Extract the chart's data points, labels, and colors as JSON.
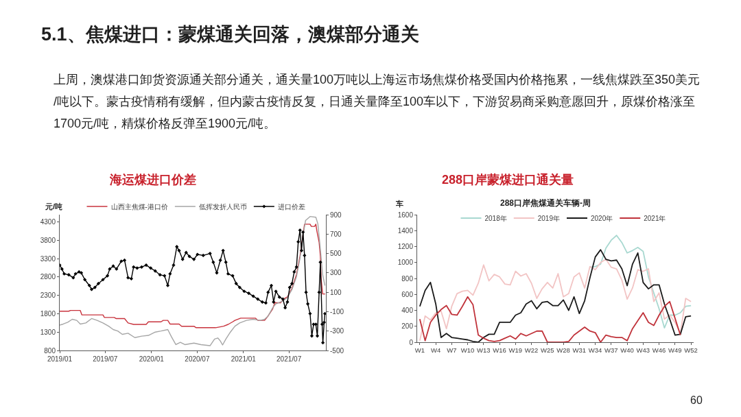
{
  "chart_data": [
    {
      "type": "line",
      "title": "海运煤进口价差",
      "ylabel": "元/吨",
      "xlim": [
        "2019-01-01",
        "2021-11-25"
      ],
      "xticks": [
        {
          "value": "2019-01",
          "label": "2019/01"
        },
        {
          "value": "2019-07",
          "label": "2019/07"
        },
        {
          "value": "2020-01",
          "label": "2020/01"
        },
        {
          "value": "2020-07",
          "label": "2020/07"
        },
        {
          "value": "2021-01",
          "label": "2021/01"
        },
        {
          "value": "2021-07",
          "label": "2021/07"
        }
      ],
      "ylim": [
        800,
        4500
      ],
      "yticks": [
        800,
        1300,
        1800,
        2300,
        2800,
        3300,
        3800,
        4300
      ],
      "y2lim": [
        -500,
        900
      ],
      "y2ticks": [
        -500,
        -300,
        -100,
        100,
        300,
        500,
        700,
        900
      ],
      "legend": "top",
      "annotations": [
        "5.1、焦煤进口：蒙煤通关回落，澳煤部分通关",
        "上周，澳煤港口卸货资源通关部分通关，通关量100万吨以上海运市场焦煤价格受国内价格拖累，一线焦煤跌至350美元/吨以下。蒙古疫情稍有缓解，但内蒙古疫情反复，日通关量降至100车以下，下游贸易商采购意愿回升，原煤价格涨至1700元/吨，精煤价格反弹至1900元/吨。"
      ],
      "series": [
        {
          "name": "山西主焦煤-港口价",
          "color": "#c8323c",
          "x": [
            "2019-01-01",
            "2019-02-06",
            "2019-02-13",
            "2019-03-24",
            "2019-03-30",
            "2019-06-22",
            "2019-06-28",
            "2019-08-06",
            "2019-08-13",
            "2019-09-16",
            "2019-09-30",
            "2019-10-22",
            "2019-12-11",
            "2019-12-20",
            "2020-02-08",
            "2020-02-17",
            "2020-03-06",
            "2020-03-15",
            "2020-04-20",
            "2020-04-30",
            "2020-06-18",
            "2020-06-27",
            "2020-09-12",
            "2020-10-14",
            "2020-11-01",
            "2020-11-19",
            "2020-11-28",
            "2020-12-21",
            "2021-02-18",
            "2021-02-27",
            "2021-03-26",
            "2021-04-09",
            "2021-04-27",
            "2021-05-06",
            "2021-05-29",
            "2021-06-11",
            "2021-06-25",
            "2021-07-13",
            "2021-07-31",
            "2021-08-14",
            "2021-08-23",
            "2021-09-01",
            "2021-09-23",
            "2021-09-28",
            "2021-10-11",
            "2021-10-16",
            "2021-10-20",
            "2021-10-29",
            "2021-11-03",
            "2021-11-06",
            "2021-11-12",
            "2021-11-22"
          ],
          "values": [
            1870,
            1870,
            1890,
            1890,
            1770,
            1770,
            1700,
            1700,
            1670,
            1670,
            1550,
            1510,
            1510,
            1580,
            1580,
            1620,
            1620,
            1520,
            1520,
            1460,
            1460,
            1420,
            1420,
            1460,
            1510,
            1580,
            1620,
            1680,
            1680,
            1620,
            1620,
            1740,
            1930,
            2100,
            2100,
            2210,
            2260,
            2490,
            2870,
            3370,
            3810,
            4240,
            4240,
            4180,
            4180,
            4240,
            4060,
            3750,
            3370,
            2750,
            2340,
            2340
          ]
        },
        {
          "name": "低挥发折人民币",
          "color": "#a6a6a6",
          "x": [
            "2019-01-01",
            "2019-01-15",
            "2019-02-02",
            "2019-02-20",
            "2019-03-10",
            "2019-03-24",
            "2019-04-15",
            "2019-05-08",
            "2019-05-30",
            "2019-06-22",
            "2019-07-15",
            "2019-08-02",
            "2019-08-20",
            "2019-09-07",
            "2019-09-30",
            "2019-10-27",
            "2019-11-23",
            "2019-12-20",
            "2020-01-16",
            "2020-02-08",
            "2020-03-06",
            "2020-03-20",
            "2020-04-07",
            "2020-04-25",
            "2020-05-13",
            "2020-06-18",
            "2020-07-16",
            "2020-08-21",
            "2020-09-08",
            "2020-09-21",
            "2020-10-01",
            "2020-10-10",
            "2020-10-23",
            "2020-11-10",
            "2020-11-28",
            "2020-12-17",
            "2021-01-13",
            "2021-02-09",
            "2021-03-08",
            "2021-03-26",
            "2021-04-09",
            "2021-04-27",
            "2021-05-10",
            "2021-06-07",
            "2021-06-25",
            "2021-07-13",
            "2021-07-31",
            "2021-08-14",
            "2021-08-28",
            "2021-09-05",
            "2021-09-23",
            "2021-10-16",
            "2021-10-24",
            "2021-11-03",
            "2021-11-12",
            "2021-11-21"
          ],
          "values": [
            1490,
            1520,
            1570,
            1650,
            1620,
            1520,
            1550,
            1670,
            1620,
            1550,
            1460,
            1370,
            1330,
            1240,
            1270,
            1150,
            1190,
            1210,
            1300,
            1330,
            1370,
            1180,
            960,
            1020,
            960,
            1000,
            960,
            930,
            1110,
            1140,
            1060,
            950,
            1110,
            1300,
            1460,
            1550,
            1620,
            1650,
            1620,
            1650,
            1740,
            1960,
            2070,
            2150,
            2240,
            2460,
            2810,
            3310,
            4000,
            4340,
            4450,
            4430,
            4250,
            3560,
            2870,
            2570
          ]
        },
        {
          "name": "进口价差",
          "color": "#000000",
          "axis": "y2",
          "marker": "diamond",
          "x": [
            "2019-01-01",
            "2019-01-10",
            "2019-01-19",
            "2019-02-06",
            "2019-02-24",
            "2019-03-05",
            "2019-03-19",
            "2019-03-28",
            "2019-04-11",
            "2019-04-29",
            "2019-05-08",
            "2019-05-21",
            "2019-06-04",
            "2019-06-22",
            "2019-07-10",
            "2019-07-19",
            "2019-08-02",
            "2019-08-15",
            "2019-09-03",
            "2019-09-16",
            "2019-09-30",
            "2019-10-13",
            "2019-10-22",
            "2019-11-05",
            "2019-11-23",
            "2019-12-11",
            "2019-12-29",
            "2020-01-16",
            "2020-02-04",
            "2020-02-22",
            "2020-03-06",
            "2020-03-15",
            "2020-03-29",
            "2020-04-11",
            "2020-04-20",
            "2020-05-04",
            "2020-05-18",
            "2020-05-31",
            "2020-06-18",
            "2020-07-02",
            "2020-07-25",
            "2020-08-21",
            "2020-09-03",
            "2020-09-17",
            "2020-10-01",
            "2020-10-12",
            "2020-10-23",
            "2020-11-01",
            "2020-11-19",
            "2020-12-03",
            "2020-12-17",
            "2021-01-04",
            "2021-01-22",
            "2021-02-09",
            "2021-02-27",
            "2021-03-17",
            "2021-03-31",
            "2021-04-09",
            "2021-04-22",
            "2021-05-01",
            "2021-05-10",
            "2021-05-24",
            "2021-06-07",
            "2021-06-16",
            "2021-06-25",
            "2021-07-04",
            "2021-07-13",
            "2021-07-22",
            "2021-07-31",
            "2021-08-07",
            "2021-08-14",
            "2021-08-20",
            "2021-08-26",
            "2021-09-01",
            "2021-09-07",
            "2021-09-14",
            "2021-09-23",
            "2021-09-30",
            "2021-10-07",
            "2021-10-16",
            "2021-10-22",
            "2021-10-29",
            "2021-11-03",
            "2021-11-10",
            "2021-11-13",
            "2021-11-18",
            "2021-11-21"
          ],
          "values": [
            380,
            340,
            290,
            280,
            250,
            290,
            310,
            300,
            230,
            170,
            130,
            150,
            190,
            230,
            270,
            340,
            370,
            340,
            420,
            430,
            250,
            240,
            360,
            350,
            360,
            380,
            350,
            320,
            280,
            270,
            170,
            290,
            380,
            570,
            530,
            440,
            510,
            470,
            440,
            490,
            480,
            500,
            410,
            300,
            430,
            530,
            410,
            290,
            270,
            190,
            150,
            110,
            90,
            60,
            30,
            0,
            -10,
            100,
            170,
            0,
            110,
            50,
            30,
            -60,
            0,
            150,
            190,
            310,
            360,
            620,
            740,
            530,
            720,
            480,
            100,
            -20,
            -120,
            -350,
            -230,
            -230,
            -350,
            100,
            410,
            -230,
            -420,
            -210,
            -120
          ]
        }
      ]
    },
    {
      "type": "line",
      "title": "288口岸蒙煤进口通关量",
      "subtitle": "288口岸焦煤通关车辆-周",
      "ylabel": "车",
      "categories": [
        "W1",
        null,
        null,
        "W4",
        null,
        null,
        "W7",
        null,
        null,
        "W10",
        null,
        null,
        "W13",
        null,
        null,
        "W16",
        null,
        null,
        "W19",
        null,
        null,
        "W22",
        null,
        null,
        "W25",
        null,
        null,
        "W28",
        null,
        null,
        "W31",
        null,
        null,
        "W34",
        null,
        null,
        "W37",
        null,
        null,
        "W40",
        null,
        null,
        "W43",
        null,
        null,
        "W46",
        null,
        null,
        "W49",
        null,
        null,
        "W52"
      ],
      "ylim": [
        0,
        1600
      ],
      "yticks": [
        0,
        200,
        400,
        600,
        800,
        1000,
        1200,
        1400,
        1600
      ],
      "legend": "top",
      "annotations": [
        "60"
      ],
      "series": [
        {
          "name": "2018年",
          "color": "#a8d8d0",
          "values": [
            null,
            null,
            null,
            null,
            null,
            null,
            null,
            null,
            null,
            null,
            null,
            null,
            null,
            null,
            null,
            null,
            null,
            null,
            null,
            null,
            null,
            null,
            null,
            null,
            null,
            null,
            null,
            null,
            null,
            null,
            null,
            null,
            940,
            950,
            980,
            1180,
            1280,
            1340,
            1250,
            1120,
            1150,
            1190,
            1140,
            820,
            620,
            420,
            180,
            340,
            340,
            370,
            450,
            460
          ]
        },
        {
          "name": "2019年",
          "color": "#f2c4c4",
          "values": [
            20,
            330,
            280,
            370,
            390,
            170,
            450,
            610,
            640,
            650,
            590,
            740,
            970,
            770,
            850,
            820,
            730,
            720,
            890,
            830,
            860,
            740,
            550,
            670,
            750,
            680,
            860,
            570,
            610,
            820,
            870,
            680,
            950,
            910,
            1000,
            1040,
            940,
            920,
            780,
            540,
            680,
            910,
            890,
            920,
            510,
            620,
            290,
            340,
            250,
            110,
            550,
            510
          ]
        },
        {
          "name": "2020年",
          "color": "#1a1a1a",
          "values": [
            450,
            650,
            750,
            480,
            60,
            110,
            60,
            50,
            40,
            30,
            10,
            0,
            60,
            100,
            100,
            250,
            250,
            250,
            340,
            370,
            480,
            520,
            420,
            500,
            510,
            460,
            460,
            530,
            400,
            570,
            360,
            520,
            810,
            1070,
            1160,
            1040,
            1020,
            1030,
            920,
            710,
            980,
            1120,
            750,
            670,
            720,
            720,
            480,
            290,
            90,
            100,
            320,
            330
          ]
        },
        {
          "name": "2021年",
          "color": "#c0323a",
          "values": [
            290,
            20,
            250,
            340,
            410,
            460,
            350,
            340,
            450,
            570,
            470,
            90,
            50,
            20,
            10,
            20,
            50,
            80,
            40,
            110,
            80,
            110,
            140,
            140,
            0,
            0,
            0,
            0,
            10,
            90,
            140,
            190,
            140,
            120,
            0,
            90,
            70,
            60,
            60,
            20,
            170,
            270,
            370,
            250,
            210,
            340,
            450,
            510,
            300,
            90,
            null,
            null
          ]
        }
      ]
    }
  ]
}
